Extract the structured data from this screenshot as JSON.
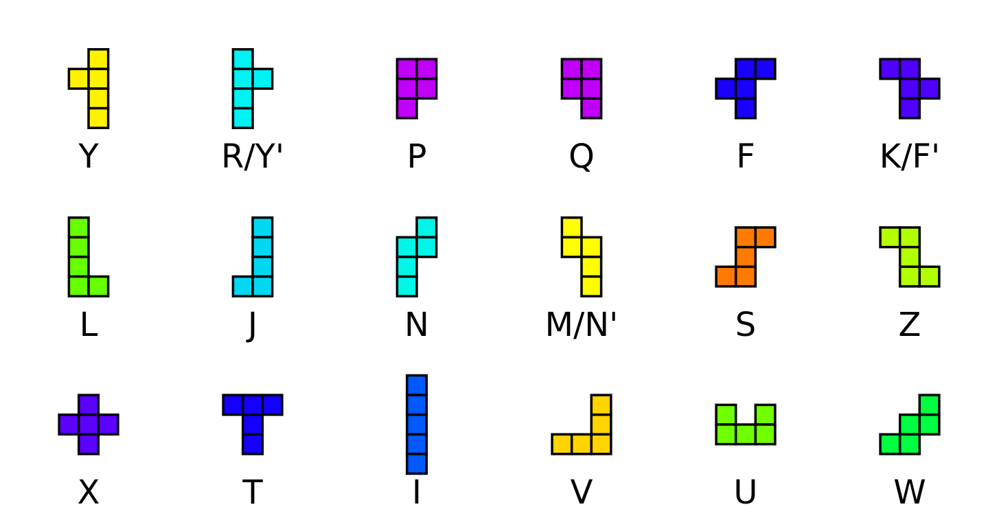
{
  "pieces": [
    {
      "name": "Y",
      "label": "Y",
      "color": "#fff200",
      "cells": [
        [
          1,
          0
        ],
        [
          0,
          1
        ],
        [
          1,
          1
        ],
        [
          1,
          2
        ],
        [
          1,
          3
        ]
      ]
    },
    {
      "name": "R/Y'",
      "label": "R/Y'",
      "color": "#00f2f2",
      "cells": [
        [
          0,
          0
        ],
        [
          0,
          1
        ],
        [
          1,
          1
        ],
        [
          0,
          2
        ],
        [
          0,
          3
        ]
      ]
    },
    {
      "name": "P",
      "label": "P",
      "color": "#c000f8",
      "cells": [
        [
          0,
          0
        ],
        [
          1,
          0
        ],
        [
          0,
          1
        ],
        [
          1,
          1
        ],
        [
          0,
          2
        ]
      ]
    },
    {
      "name": "Q",
      "label": "Q",
      "color": "#c000f8",
      "cells": [
        [
          0,
          0
        ],
        [
          1,
          0
        ],
        [
          0,
          1
        ],
        [
          1,
          1
        ],
        [
          1,
          2
        ]
      ]
    },
    {
      "name": "F",
      "label": "F",
      "color": "#1a00ff",
      "cells": [
        [
          1,
          0
        ],
        [
          2,
          0
        ],
        [
          0,
          1
        ],
        [
          1,
          1
        ],
        [
          1,
          2
        ]
      ]
    },
    {
      "name": "K/F'",
      "label": "K/F'",
      "color": "#5000ff",
      "cells": [
        [
          0,
          0
        ],
        [
          1,
          0
        ],
        [
          1,
          1
        ],
        [
          2,
          1
        ],
        [
          1,
          2
        ]
      ]
    },
    {
      "name": "L",
      "label": "L",
      "color": "#66ff00",
      "cells": [
        [
          0,
          0
        ],
        [
          0,
          1
        ],
        [
          0,
          2
        ],
        [
          0,
          3
        ],
        [
          1,
          3
        ]
      ]
    },
    {
      "name": "J",
      "label": "J",
      "color": "#00d8f2",
      "cells": [
        [
          1,
          0
        ],
        [
          1,
          1
        ],
        [
          1,
          2
        ],
        [
          0,
          3
        ],
        [
          1,
          3
        ]
      ]
    },
    {
      "name": "N",
      "label": "N",
      "color": "#00f5e8",
      "cells": [
        [
          1,
          0
        ],
        [
          0,
          1
        ],
        [
          1,
          1
        ],
        [
          0,
          2
        ],
        [
          0,
          3
        ]
      ]
    },
    {
      "name": "M/N'",
      "label": "M/N'",
      "color": "#ffff00",
      "cells": [
        [
          0,
          0
        ],
        [
          0,
          1
        ],
        [
          1,
          1
        ],
        [
          1,
          2
        ],
        [
          1,
          3
        ]
      ]
    },
    {
      "name": "S",
      "label": "S",
      "color": "#ff7a00",
      "cells": [
        [
          1,
          0
        ],
        [
          2,
          0
        ],
        [
          1,
          1
        ],
        [
          0,
          2
        ],
        [
          1,
          2
        ]
      ]
    },
    {
      "name": "Z",
      "label": "Z",
      "color": "#b2ff00",
      "cells": [
        [
          0,
          0
        ],
        [
          1,
          0
        ],
        [
          1,
          1
        ],
        [
          1,
          2
        ],
        [
          2,
          2
        ]
      ]
    },
    {
      "name": "X",
      "label": "X",
      "color": "#5c00ff",
      "cells": [
        [
          1,
          0
        ],
        [
          0,
          1
        ],
        [
          1,
          1
        ],
        [
          2,
          1
        ],
        [
          1,
          2
        ]
      ]
    },
    {
      "name": "T",
      "label": "T",
      "color": "#1400ff",
      "cells": [
        [
          0,
          0
        ],
        [
          1,
          0
        ],
        [
          2,
          0
        ],
        [
          1,
          1
        ],
        [
          1,
          2
        ]
      ]
    },
    {
      "name": "I",
      "label": "I",
      "color": "#0058ff",
      "cells": [
        [
          0,
          0
        ],
        [
          0,
          1
        ],
        [
          0,
          2
        ],
        [
          0,
          3
        ],
        [
          0,
          4
        ]
      ]
    },
    {
      "name": "V",
      "label": "V",
      "color": "#ffd400",
      "cells": [
        [
          2,
          0
        ],
        [
          2,
          1
        ],
        [
          0,
          2
        ],
        [
          1,
          2
        ],
        [
          2,
          2
        ]
      ]
    },
    {
      "name": "U",
      "label": "U",
      "color": "#70ff00",
      "cells": [
        [
          0,
          0
        ],
        [
          2,
          0
        ],
        [
          0,
          1
        ],
        [
          1,
          1
        ],
        [
          2,
          1
        ]
      ]
    },
    {
      "name": "W",
      "label": "W",
      "color": "#00ff40",
      "cells": [
        [
          2,
          0
        ],
        [
          1,
          1
        ],
        [
          2,
          1
        ],
        [
          0,
          2
        ],
        [
          1,
          2
        ]
      ]
    }
  ]
}
